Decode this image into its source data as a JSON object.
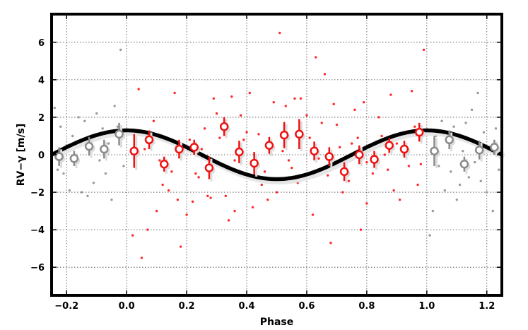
{
  "chart_data": {
    "type": "scatter",
    "title": "",
    "xlabel": "Phase",
    "ylabel": "RV−γ [m/s]",
    "xlim": [
      -0.25,
      1.25
    ],
    "ylim": [
      -7.5,
      7.5
    ],
    "grid": true,
    "x_ticks": [
      "−0.2",
      "0.0",
      "0.2",
      "0.4",
      "0.6",
      "0.8",
      "1.0",
      "1.2"
    ],
    "y_ticks": [
      "−6",
      "−4",
      "−2",
      "0",
      "2",
      "4",
      "6"
    ],
    "series": [
      {
        "kind": "raw-points",
        "color": "#ff2a2a",
        "points": [
          [
            0.02,
            -4.3
          ],
          [
            0.05,
            -5.5
          ],
          [
            0.07,
            -4.0
          ],
          [
            0.09,
            1.8
          ],
          [
            0.1,
            -3.0
          ],
          [
            0.12,
            -1.6
          ],
          [
            0.14,
            -1.9
          ],
          [
            0.15,
            -0.9
          ],
          [
            0.17,
            -2.4
          ],
          [
            0.18,
            -4.9
          ],
          [
            0.2,
            -3.2
          ],
          [
            0.22,
            -2.5
          ],
          [
            0.24,
            -1.2
          ],
          [
            0.27,
            -2.2
          ],
          [
            0.28,
            -2.3
          ],
          [
            0.3,
            2.2
          ],
          [
            0.33,
            -2.2
          ],
          [
            0.34,
            -3.5
          ],
          [
            0.36,
            -3.0
          ],
          [
            0.38,
            2.1
          ],
          [
            0.4,
            1.2
          ],
          [
            0.42,
            -2.8
          ],
          [
            0.45,
            -1.6
          ],
          [
            0.47,
            -2.4
          ],
          [
            0.49,
            2.8
          ],
          [
            0.5,
            -2.0
          ],
          [
            0.51,
            6.5
          ],
          [
            0.53,
            2.6
          ],
          [
            0.56,
            3.0
          ],
          [
            0.58,
            3.0
          ],
          [
            0.62,
            -3.2
          ],
          [
            0.63,
            5.2
          ],
          [
            0.65,
            1.7
          ],
          [
            0.66,
            4.3
          ],
          [
            0.68,
            -4.7
          ],
          [
            0.7,
            1.6
          ],
          [
            0.72,
            -2.0
          ],
          [
            0.74,
            -1.4
          ],
          [
            0.76,
            2.4
          ],
          [
            0.78,
            -4.0
          ],
          [
            0.8,
            -2.6
          ],
          [
            0.82,
            -1.0
          ],
          [
            0.84,
            2.0
          ],
          [
            0.86,
            0.0
          ],
          [
            0.89,
            -1.9
          ],
          [
            0.91,
            -2.4
          ],
          [
            0.94,
            -0.6
          ],
          [
            0.96,
            1.5
          ],
          [
            0.97,
            -1.6
          ],
          [
            0.99,
            5.6
          ],
          [
            0.12,
            1.0
          ],
          [
            0.13,
            -0.6
          ],
          [
            0.21,
            0.8
          ],
          [
            0.25,
            0.3
          ],
          [
            0.36,
            -0.3
          ],
          [
            0.39,
            0.8
          ],
          [
            0.43,
            -0.5
          ],
          [
            0.52,
            0.2
          ],
          [
            0.55,
            -0.7
          ],
          [
            0.61,
            0.9
          ],
          [
            0.64,
            -0.2
          ],
          [
            0.71,
            0.4
          ],
          [
            0.75,
            0.6
          ],
          [
            0.8,
            -0.4
          ],
          [
            0.85,
            1.0
          ],
          [
            0.9,
            0.6
          ],
          [
            0.93,
            1.2
          ],
          [
            0.04,
            3.5
          ],
          [
            0.16,
            3.3
          ],
          [
            0.29,
            3.0
          ],
          [
            0.35,
            3.1
          ],
          [
            0.41,
            3.3
          ],
          [
            0.6,
            2.1
          ],
          [
            0.69,
            2.7
          ],
          [
            0.79,
            2.8
          ],
          [
            0.88,
            3.2
          ],
          [
            0.95,
            3.4
          ],
          [
            0.06,
            0.3
          ],
          [
            0.11,
            -0.3
          ],
          [
            0.23,
            -1.0
          ],
          [
            0.26,
            1.4
          ],
          [
            0.31,
            0.9
          ],
          [
            0.44,
            1.1
          ],
          [
            0.46,
            -0.9
          ],
          [
            0.54,
            -0.3
          ],
          [
            0.57,
            -1.5
          ],
          [
            0.67,
            -1.1
          ],
          [
            0.73,
            -0.7
          ],
          [
            0.77,
            0.9
          ],
          [
            0.83,
            -0.2
          ],
          [
            0.87,
            -0.8
          ],
          [
            0.92,
            0.3
          ],
          [
            0.98,
            -0.5
          ]
        ]
      },
      {
        "kind": "raw-points",
        "color": "#9a9a9a",
        "points": [
          [
            -0.24,
            2.5
          ],
          [
            -0.23,
            -0.8
          ],
          [
            -0.22,
            1.5
          ],
          [
            -0.21,
            -1.0
          ],
          [
            -0.2,
            0.5
          ],
          [
            -0.19,
            -1.9
          ],
          [
            -0.18,
            1.0
          ],
          [
            -0.17,
            -0.5
          ],
          [
            -0.16,
            2.0
          ],
          [
            -0.15,
            -2.0
          ],
          [
            -0.14,
            1.8
          ],
          [
            -0.13,
            -2.2
          ],
          [
            -0.12,
            0.8
          ],
          [
            -0.11,
            -1.5
          ],
          [
            -0.1,
            2.2
          ],
          [
            -0.09,
            -0.3
          ],
          [
            -0.08,
            1.4
          ],
          [
            -0.07,
            -1.0
          ],
          [
            -0.06,
            0.6
          ],
          [
            -0.05,
            -2.4
          ],
          [
            -0.04,
            2.6
          ],
          [
            -0.03,
            1.5
          ],
          [
            -0.02,
            5.6
          ],
          [
            -0.01,
            -0.6
          ],
          [
            1.01,
            -4.3
          ],
          [
            1.02,
            -3.0
          ],
          [
            1.03,
            1.0
          ],
          [
            1.04,
            -0.6
          ],
          [
            1.05,
            1.8
          ],
          [
            1.06,
            -1.9
          ],
          [
            1.07,
            0.8
          ],
          [
            1.08,
            -0.9
          ],
          [
            1.09,
            1.5
          ],
          [
            1.1,
            -2.4
          ],
          [
            1.11,
            -1.6
          ],
          [
            1.12,
            0.2
          ],
          [
            1.13,
            1.7
          ],
          [
            1.14,
            -1.2
          ],
          [
            1.15,
            2.4
          ],
          [
            1.16,
            -0.4
          ],
          [
            1.17,
            3.3
          ],
          [
            1.18,
            -1.4
          ],
          [
            1.19,
            1.2
          ],
          [
            1.2,
            -2.0
          ],
          [
            1.21,
            0.4
          ],
          [
            1.22,
            -3.0
          ],
          [
            1.23,
            1.4
          ],
          [
            1.24,
            -0.8
          ]
        ]
      },
      {
        "kind": "binned",
        "color": "#ee1111",
        "points": [
          [
            0.025,
            0.2,
            0.9
          ],
          [
            0.075,
            0.8,
            0.5
          ],
          [
            0.125,
            -0.5,
            0.4
          ],
          [
            0.175,
            0.3,
            0.5
          ],
          [
            0.225,
            0.4,
            0.4
          ],
          [
            0.275,
            -0.7,
            0.6
          ],
          [
            0.325,
            1.5,
            0.5
          ],
          [
            0.375,
            0.15,
            0.6
          ],
          [
            0.425,
            -0.45,
            0.6
          ],
          [
            0.475,
            0.5,
            0.45
          ],
          [
            0.525,
            1.05,
            0.7
          ],
          [
            0.575,
            1.1,
            0.8
          ],
          [
            0.625,
            0.2,
            0.5
          ],
          [
            0.675,
            -0.1,
            0.5
          ],
          [
            0.725,
            -0.9,
            0.5
          ],
          [
            0.775,
            0.0,
            0.5
          ],
          [
            0.825,
            -0.25,
            0.45
          ],
          [
            0.875,
            0.5,
            0.4
          ],
          [
            0.925,
            0.3,
            0.45
          ],
          [
            0.975,
            1.2,
            0.5
          ]
        ]
      },
      {
        "kind": "binned",
        "color": "#8a8a8a",
        "points": [
          [
            -0.225,
            -0.1,
            0.5
          ],
          [
            -0.175,
            -0.2,
            0.4
          ],
          [
            -0.125,
            0.45,
            0.5
          ],
          [
            -0.075,
            0.3,
            0.5
          ],
          [
            -0.025,
            1.1,
            0.6
          ],
          [
            1.025,
            0.2,
            0.8
          ],
          [
            1.075,
            0.8,
            0.5
          ],
          [
            1.125,
            -0.5,
            0.4
          ],
          [
            1.175,
            0.25,
            0.5
          ],
          [
            1.225,
            0.4,
            0.4
          ]
        ]
      },
      {
        "kind": "model",
        "color": "#000000",
        "amplitude": 1.3,
        "peak_phase": 0.0
      }
    ]
  }
}
